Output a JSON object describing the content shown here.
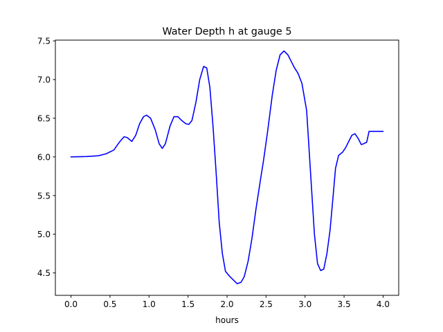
{
  "chart_data": {
    "type": "line",
    "title": "Water Depth h at gauge 5",
    "xlabel": "hours",
    "ylabel": "",
    "xlim": [
      -0.2,
      4.2
    ],
    "ylim": [
      4.21,
      7.51
    ],
    "xticks": [
      0.0,
      0.5,
      1.0,
      1.5,
      2.0,
      2.5,
      3.0,
      3.5,
      4.0
    ],
    "xtick_labels": [
      "0.0",
      "0.5",
      "1.0",
      "1.5",
      "2.0",
      "2.5",
      "3.0",
      "3.5",
      "4.0"
    ],
    "yticks": [
      4.5,
      5.0,
      5.5,
      6.0,
      6.5,
      7.0,
      7.5
    ],
    "ytick_labels": [
      "4.5",
      "5.0",
      "5.5",
      "6.0",
      "6.5",
      "7.0",
      "7.5"
    ],
    "grid": false,
    "series": [
      {
        "color": "#0000ff",
        "x": [
          0.0,
          0.2,
          0.35,
          0.45,
          0.55,
          0.62,
          0.68,
          0.72,
          0.78,
          0.83,
          0.88,
          0.93,
          0.97,
          1.02,
          1.08,
          1.13,
          1.17,
          1.21,
          1.27,
          1.32,
          1.37,
          1.42,
          1.47,
          1.51,
          1.55,
          1.6,
          1.65,
          1.7,
          1.74,
          1.78,
          1.82,
          1.86,
          1.9,
          1.94,
          1.98,
          2.03,
          2.08,
          2.13,
          2.18,
          2.22,
          2.27,
          2.32,
          2.37,
          2.42,
          2.47,
          2.52,
          2.58,
          2.63,
          2.68,
          2.73,
          2.78,
          2.82,
          2.86,
          2.91,
          2.96,
          3.02,
          3.07,
          3.12,
          3.16,
          3.2,
          3.24,
          3.28,
          3.32,
          3.36,
          3.39,
          3.43,
          3.48,
          3.52,
          3.56,
          3.6,
          3.64,
          3.68,
          3.72,
          3.75,
          3.79,
          3.82,
          3.85,
          3.88,
          3.92,
          3.95,
          3.98,
          4.0
        ],
        "y": [
          6.0,
          6.005,
          6.015,
          6.04,
          6.09,
          6.19,
          6.26,
          6.25,
          6.2,
          6.28,
          6.43,
          6.52,
          6.54,
          6.5,
          6.35,
          6.17,
          6.11,
          6.17,
          6.4,
          6.52,
          6.52,
          6.47,
          6.43,
          6.42,
          6.47,
          6.7,
          7.0,
          7.17,
          7.15,
          6.9,
          6.4,
          5.8,
          5.15,
          4.75,
          4.52,
          4.46,
          4.41,
          4.36,
          4.38,
          4.45,
          4.65,
          4.95,
          5.32,
          5.65,
          5.97,
          6.33,
          6.8,
          7.12,
          7.32,
          7.37,
          7.32,
          7.24,
          7.16,
          7.08,
          6.95,
          6.6,
          5.8,
          5.0,
          4.62,
          4.53,
          4.55,
          4.75,
          5.05,
          5.5,
          5.85,
          6.02,
          6.06,
          6.12,
          6.2,
          6.28,
          6.3,
          6.24,
          6.16,
          6.17,
          6.19,
          6.33,
          6.33,
          6.33,
          6.33,
          6.33,
          6.33,
          6.33
        ]
      }
    ]
  }
}
